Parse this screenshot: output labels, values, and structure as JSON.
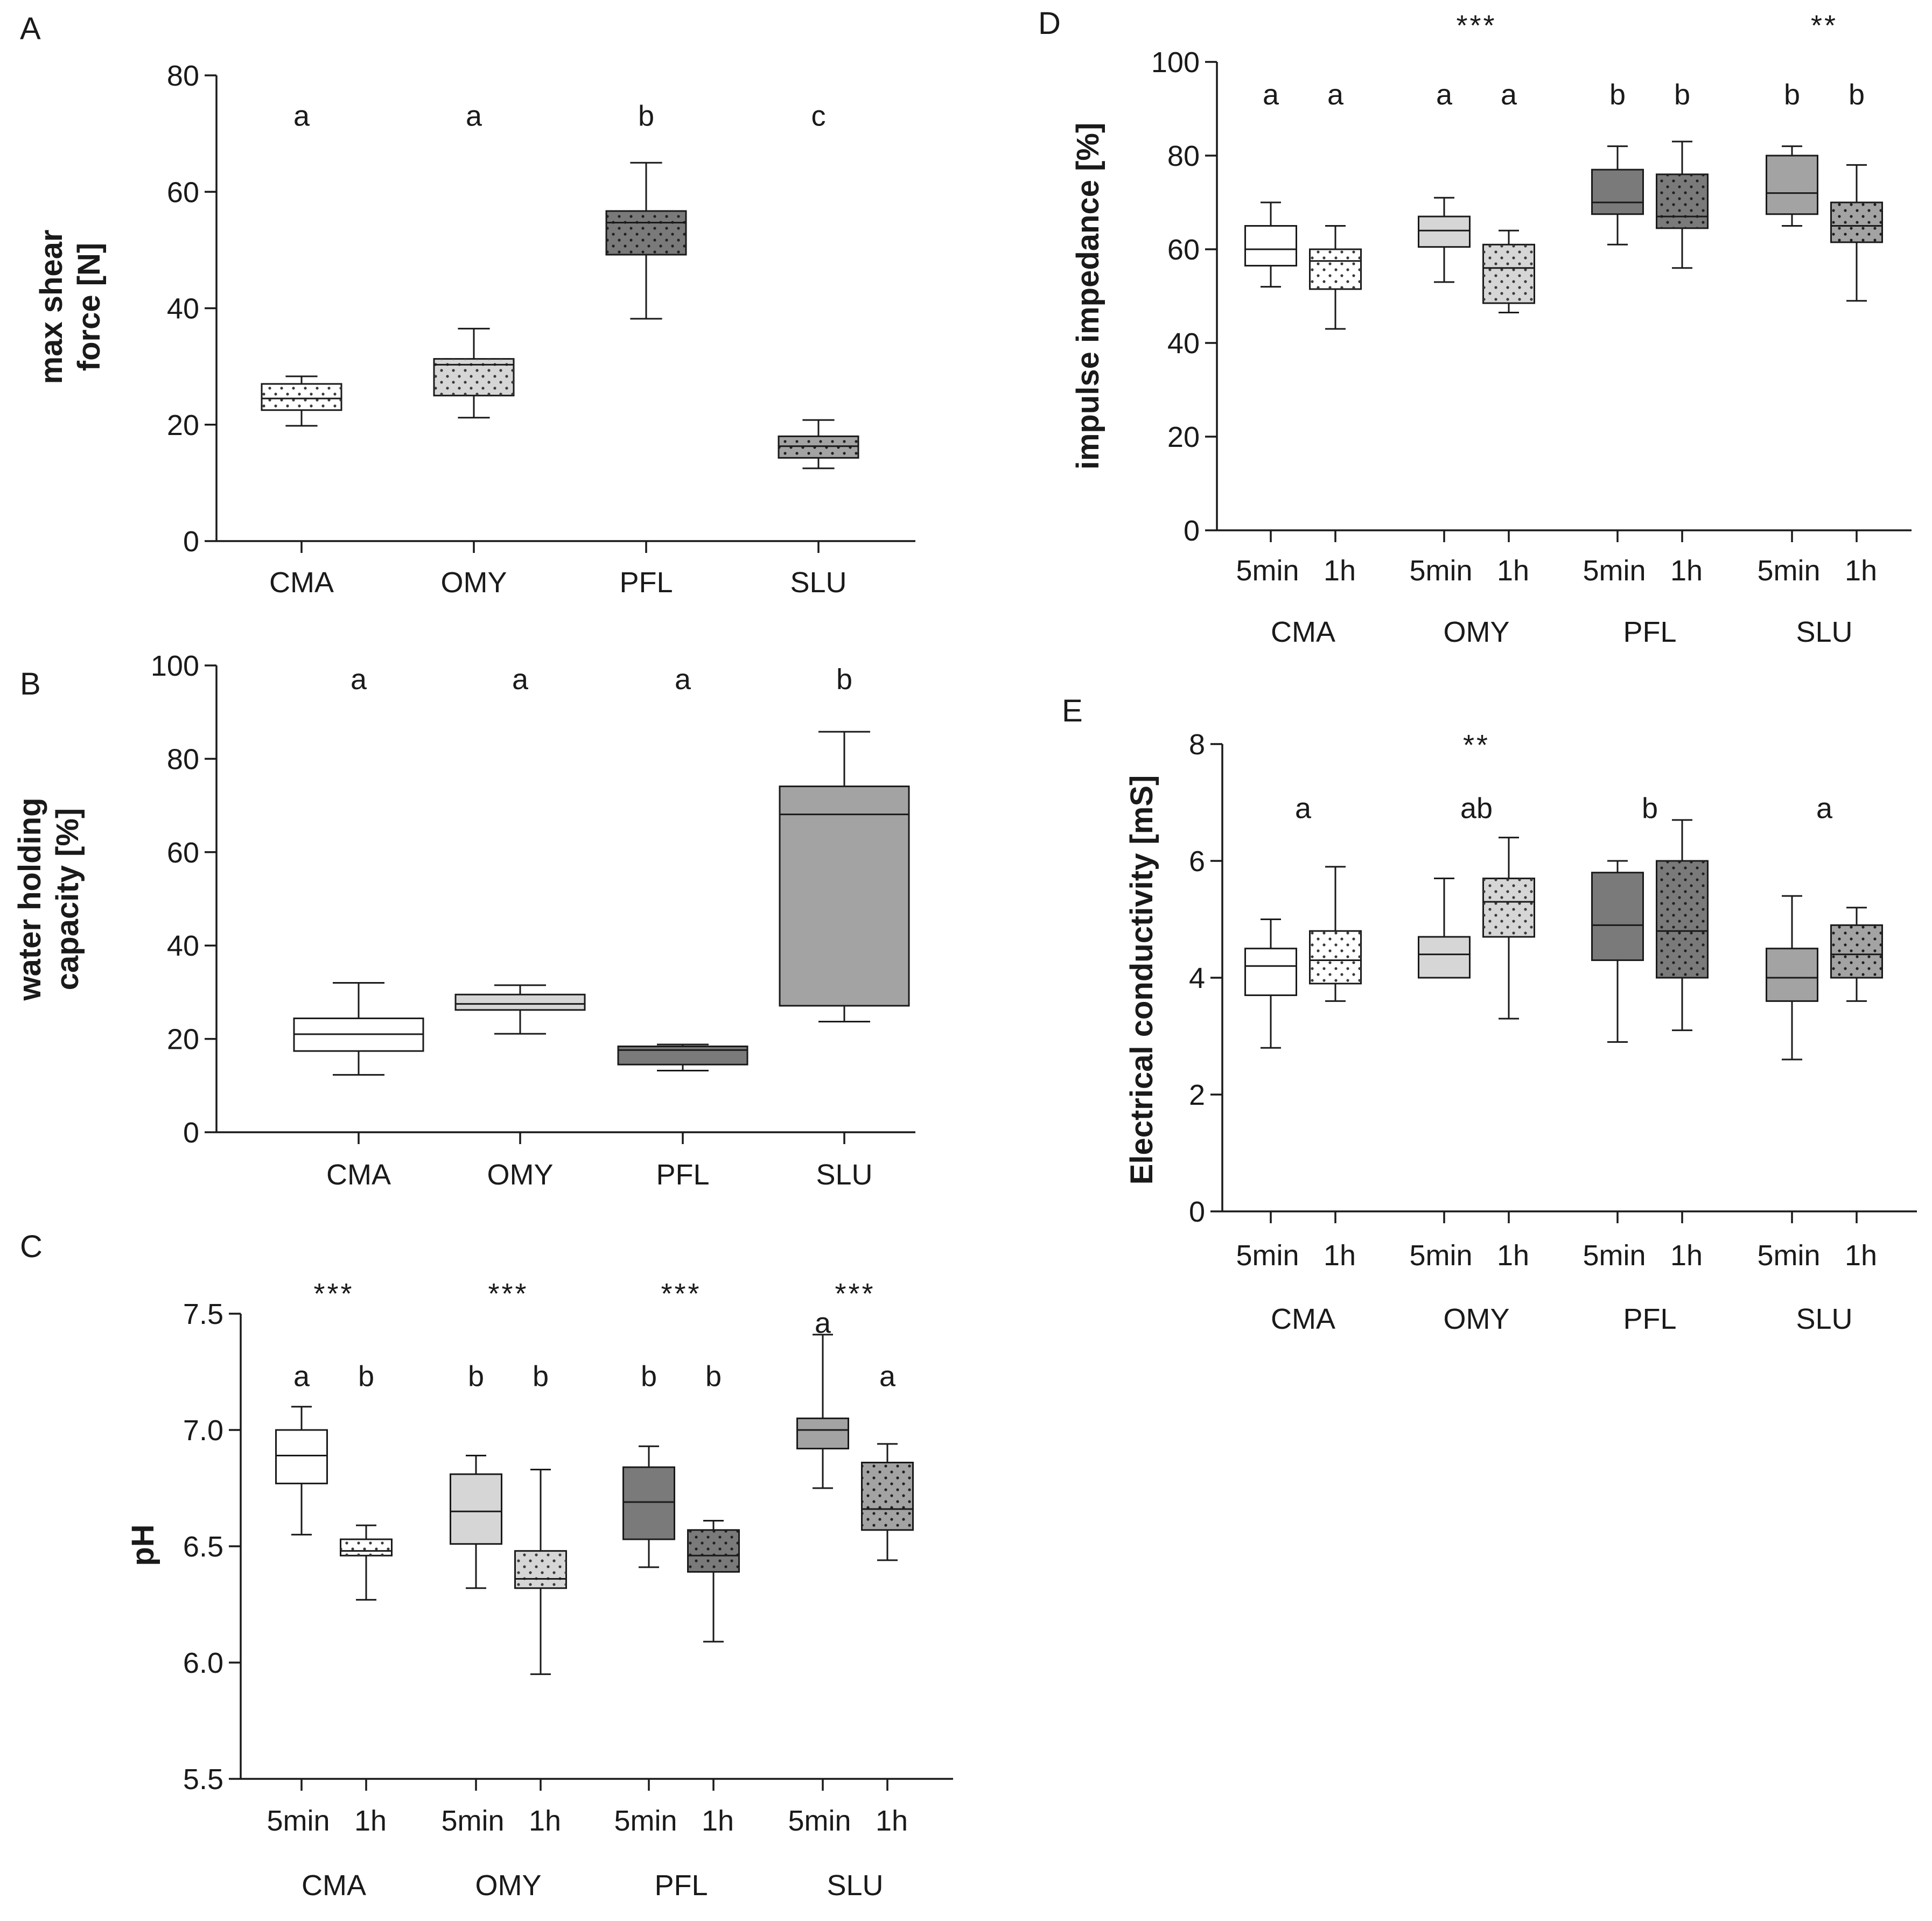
{
  "colors": {
    "white": "#ffffff",
    "light": "#d6d6d6",
    "medium": "#a3a3a3",
    "dark": "#7a7a7a",
    "ink": "#1a1a1a",
    "dot": "#3a3a3a"
  },
  "chart_data": [
    {
      "id": "A",
      "type": "box",
      "panel_label": "A",
      "ylabel": [
        "max shear",
        "force [N]"
      ],
      "ylim": [
        0,
        80
      ],
      "yticks": [
        0,
        20,
        40,
        60,
        80
      ],
      "groups": [
        "CMA",
        "OMY",
        "PFL",
        "SLU"
      ],
      "sub_labels": [],
      "boxes": [
        {
          "group": "CMA",
          "fill": "white",
          "dotted": true,
          "min": 19.8,
          "q1": 22.5,
          "median": 24.5,
          "q3": 27.0,
          "max": 28.3
        },
        {
          "group": "OMY",
          "fill": "light",
          "dotted": true,
          "min": 21.2,
          "q1": 25.0,
          "median": 30.3,
          "q3": 31.3,
          "max": 36.5
        },
        {
          "group": "PFL",
          "fill": "dark",
          "dotted": true,
          "min": 38.2,
          "q1": 49.2,
          "median": 54.7,
          "q3": 56.7,
          "max": 65.0
        },
        {
          "group": "SLU",
          "fill": "medium",
          "dotted": true,
          "min": 12.5,
          "q1": 14.3,
          "median": 16.3,
          "q3": 18.0,
          "max": 20.8
        }
      ],
      "letters": [
        {
          "text": "a",
          "group": "CMA",
          "y": 73
        },
        {
          "text": "a",
          "group": "OMY",
          "y": 73
        },
        {
          "text": "b",
          "group": "PFL",
          "y": 73
        },
        {
          "text": "c",
          "group": "SLU",
          "y": 73
        }
      ],
      "stars": []
    },
    {
      "id": "B",
      "type": "box",
      "panel_label": "B",
      "ylabel": [
        "water holding",
        "capacity [%]"
      ],
      "ylim": [
        0,
        100
      ],
      "yticks": [
        0,
        20,
        40,
        60,
        80,
        100
      ],
      "groups": [
        "CMA",
        "OMY",
        "PFL",
        "SLU"
      ],
      "sub_labels": [],
      "boxes": [
        {
          "group": "CMA",
          "fill": "white",
          "dotted": false,
          "min": 12.3,
          "q1": 17.4,
          "median": 21.0,
          "q3": 24.4,
          "max": 32.0
        },
        {
          "group": "OMY",
          "fill": "light",
          "dotted": false,
          "min": 21.1,
          "q1": 26.2,
          "median": 27.5,
          "q3": 29.5,
          "max": 31.5
        },
        {
          "group": "PFL",
          "fill": "dark",
          "dotted": false,
          "min": 13.2,
          "q1": 14.5,
          "median": 17.6,
          "q3": 18.4,
          "max": 18.8
        },
        {
          "group": "SLU",
          "fill": "medium",
          "dotted": false,
          "min": 23.7,
          "q1": 27.1,
          "median": 68.1,
          "q3": 74.1,
          "max": 85.8
        }
      ],
      "letters": [
        {
          "text": "a",
          "group": "CMA",
          "y": 97
        },
        {
          "text": "a",
          "group": "OMY",
          "y": 97
        },
        {
          "text": "a",
          "group": "PFL",
          "y": 97
        },
        {
          "text": "b",
          "group": "SLU",
          "y": 97
        }
      ],
      "stars": []
    },
    {
      "id": "C",
      "type": "box",
      "panel_label": "C",
      "ylabel": [
        "pH"
      ],
      "ylim": [
        5.5,
        7.5
      ],
      "yticks": [
        5.5,
        6.0,
        6.5,
        7.0,
        7.5
      ],
      "groups": [
        "CMA",
        "OMY",
        "PFL",
        "SLU"
      ],
      "sub_labels": [
        "5min",
        "1h"
      ],
      "boxes": [
        {
          "group": "CMA",
          "sub": "5min",
          "fill": "white",
          "dotted": false,
          "min": 6.55,
          "q1": 6.77,
          "median": 6.89,
          "q3": 7.0,
          "max": 7.1
        },
        {
          "group": "CMA",
          "sub": "1h",
          "fill": "white",
          "dotted": true,
          "min": 6.27,
          "q1": 6.46,
          "median": 6.48,
          "q3": 6.53,
          "max": 6.59
        },
        {
          "group": "OMY",
          "sub": "5min",
          "fill": "light",
          "dotted": false,
          "min": 6.32,
          "q1": 6.51,
          "median": 6.65,
          "q3": 6.81,
          "max": 6.89
        },
        {
          "group": "OMY",
          "sub": "1h",
          "fill": "light",
          "dotted": true,
          "min": 5.95,
          "q1": 6.32,
          "median": 6.36,
          "q3": 6.48,
          "max": 6.83
        },
        {
          "group": "PFL",
          "sub": "5min",
          "fill": "dark",
          "dotted": false,
          "min": 6.41,
          "q1": 6.53,
          "median": 6.69,
          "q3": 6.84,
          "max": 6.93
        },
        {
          "group": "PFL",
          "sub": "1h",
          "fill": "dark",
          "dotted": true,
          "min": 6.09,
          "q1": 6.39,
          "median": 6.46,
          "q3": 6.57,
          "max": 6.61
        },
        {
          "group": "SLU",
          "sub": "5min",
          "fill": "medium",
          "dotted": false,
          "min": 6.75,
          "q1": 6.92,
          "median": 7.0,
          "q3": 7.05,
          "max": 7.41
        },
        {
          "group": "SLU",
          "sub": "1h",
          "fill": "medium",
          "dotted": true,
          "min": 6.44,
          "q1": 6.57,
          "median": 6.66,
          "q3": 6.86,
          "max": 6.94
        }
      ],
      "letters": [
        {
          "text": "a",
          "group": "CMA",
          "sub": "5min",
          "y": 7.23
        },
        {
          "text": "b",
          "group": "CMA",
          "sub": "1h",
          "y": 7.23
        },
        {
          "text": "b",
          "group": "OMY",
          "sub": "5min",
          "y": 7.23
        },
        {
          "text": "b",
          "group": "OMY",
          "sub": "1h",
          "y": 7.23
        },
        {
          "text": "b",
          "group": "PFL",
          "sub": "5min",
          "y": 7.23
        },
        {
          "text": "b",
          "group": "PFL",
          "sub": "1h",
          "y": 7.23
        },
        {
          "text": "a",
          "group": "SLU",
          "sub": "5min",
          "y": 7.46
        },
        {
          "text": "a",
          "group": "SLU",
          "sub": "1h",
          "y": 7.23
        }
      ],
      "stars": [
        {
          "text": "***",
          "group": "CMA",
          "y": 7.59
        },
        {
          "text": "***",
          "group": "OMY",
          "y": 7.59
        },
        {
          "text": "***",
          "group": "PFL",
          "y": 7.59
        },
        {
          "text": "***",
          "group": "SLU",
          "y": 7.59
        }
      ]
    },
    {
      "id": "D",
      "type": "box",
      "panel_label": "D",
      "ylabel": [
        "impulse impedance [%]"
      ],
      "ylim": [
        0,
        100
      ],
      "yticks": [
        0,
        20,
        40,
        60,
        80,
        100
      ],
      "groups": [
        "CMA",
        "OMY",
        "PFL",
        "SLU"
      ],
      "sub_labels": [
        "5min",
        "1h"
      ],
      "boxes": [
        {
          "group": "CMA",
          "sub": "5min",
          "fill": "white",
          "dotted": false,
          "min": 52,
          "q1": 56.5,
          "median": 60,
          "q3": 65,
          "max": 70
        },
        {
          "group": "CMA",
          "sub": "1h",
          "fill": "white",
          "dotted": true,
          "min": 43,
          "q1": 51.5,
          "median": 57.5,
          "q3": 60,
          "max": 65
        },
        {
          "group": "OMY",
          "sub": "5min",
          "fill": "light",
          "dotted": false,
          "min": 53,
          "q1": 60.5,
          "median": 64,
          "q3": 67,
          "max": 71
        },
        {
          "group": "OMY",
          "sub": "1h",
          "fill": "light",
          "dotted": true,
          "min": 46.5,
          "q1": 48.5,
          "median": 56,
          "q3": 61,
          "max": 64
        },
        {
          "group": "PFL",
          "sub": "5min",
          "fill": "dark",
          "dotted": false,
          "min": 61,
          "q1": 67.5,
          "median": 70,
          "q3": 77,
          "max": 82
        },
        {
          "group": "PFL",
          "sub": "1h",
          "fill": "dark",
          "dotted": true,
          "min": 56,
          "q1": 64.5,
          "median": 67,
          "q3": 76,
          "max": 83
        },
        {
          "group": "SLU",
          "sub": "5min",
          "fill": "medium",
          "dotted": false,
          "min": 65,
          "q1": 67.5,
          "median": 72,
          "q3": 80,
          "max": 82
        },
        {
          "group": "SLU",
          "sub": "1h",
          "fill": "medium",
          "dotted": true,
          "min": 49,
          "q1": 61.5,
          "median": 65,
          "q3": 70,
          "max": 78
        }
      ],
      "letters": [
        {
          "text": "a",
          "group": "CMA",
          "sub": "5min",
          "y": 93
        },
        {
          "text": "a",
          "group": "CMA",
          "sub": "1h",
          "y": 93
        },
        {
          "text": "a",
          "group": "OMY",
          "sub": "5min",
          "y": 93
        },
        {
          "text": "a",
          "group": "OMY",
          "sub": "1h",
          "y": 93
        },
        {
          "text": "b",
          "group": "PFL",
          "sub": "5min",
          "y": 93
        },
        {
          "text": "b",
          "group": "PFL",
          "sub": "1h",
          "y": 93
        },
        {
          "text": "b",
          "group": "SLU",
          "sub": "5min",
          "y": 93
        },
        {
          "text": "b",
          "group": "SLU",
          "sub": "1h",
          "y": 93
        }
      ],
      "stars": [
        {
          "text": "***",
          "group": "OMY",
          "y": 108
        },
        {
          "text": "**",
          "group": "SLU",
          "y": 108
        }
      ]
    },
    {
      "id": "E",
      "type": "box",
      "panel_label": "E",
      "ylabel": [
        "Electrical conductivity [mS]"
      ],
      "ylim": [
        0,
        8
      ],
      "yticks": [
        0,
        2,
        4,
        6,
        8
      ],
      "groups": [
        "CMA",
        "OMY",
        "PFL",
        "SLU"
      ],
      "sub_labels": [
        "5min",
        "1h"
      ],
      "boxes": [
        {
          "group": "CMA",
          "sub": "5min",
          "fill": "white",
          "dotted": false,
          "min": 2.8,
          "q1": 3.7,
          "median": 4.2,
          "q3": 4.5,
          "max": 5.0
        },
        {
          "group": "CMA",
          "sub": "1h",
          "fill": "white",
          "dotted": true,
          "min": 3.6,
          "q1": 3.9,
          "median": 4.3,
          "q3": 4.8,
          "max": 5.9
        },
        {
          "group": "OMY",
          "sub": "5min",
          "fill": "light",
          "dotted": false,
          "min": 4.0,
          "q1": 4.0,
          "median": 4.4,
          "q3": 4.7,
          "max": 5.7
        },
        {
          "group": "OMY",
          "sub": "1h",
          "fill": "light",
          "dotted": true,
          "min": 3.3,
          "q1": 4.7,
          "median": 5.3,
          "q3": 5.7,
          "max": 6.4
        },
        {
          "group": "PFL",
          "sub": "5min",
          "fill": "dark",
          "dotted": false,
          "min": 2.9,
          "q1": 4.3,
          "median": 4.9,
          "q3": 5.8,
          "max": 6.0
        },
        {
          "group": "PFL",
          "sub": "1h",
          "fill": "dark",
          "dotted": true,
          "min": 3.1,
          "q1": 4.0,
          "median": 4.8,
          "q3": 6.0,
          "max": 6.7
        },
        {
          "group": "SLU",
          "sub": "5min",
          "fill": "medium",
          "dotted": false,
          "min": 2.6,
          "q1": 3.6,
          "median": 4.0,
          "q3": 4.5,
          "max": 5.4
        },
        {
          "group": "SLU",
          "sub": "1h",
          "fill": "medium",
          "dotted": true,
          "min": 3.6,
          "q1": 4.0,
          "median": 4.4,
          "q3": 4.9,
          "max": 5.2
        }
      ],
      "letters": [
        {
          "text": "a",
          "group": "CMA",
          "y": 6.9
        },
        {
          "text": "ab",
          "group": "OMY",
          "y": 6.9
        },
        {
          "text": "b",
          "group": "PFL",
          "y": 6.9
        },
        {
          "text": "a",
          "group": "SLU",
          "y": 6.9
        }
      ],
      "stars": [
        {
          "text": "**",
          "group": "OMY",
          "y": 8.0
        }
      ]
    }
  ]
}
